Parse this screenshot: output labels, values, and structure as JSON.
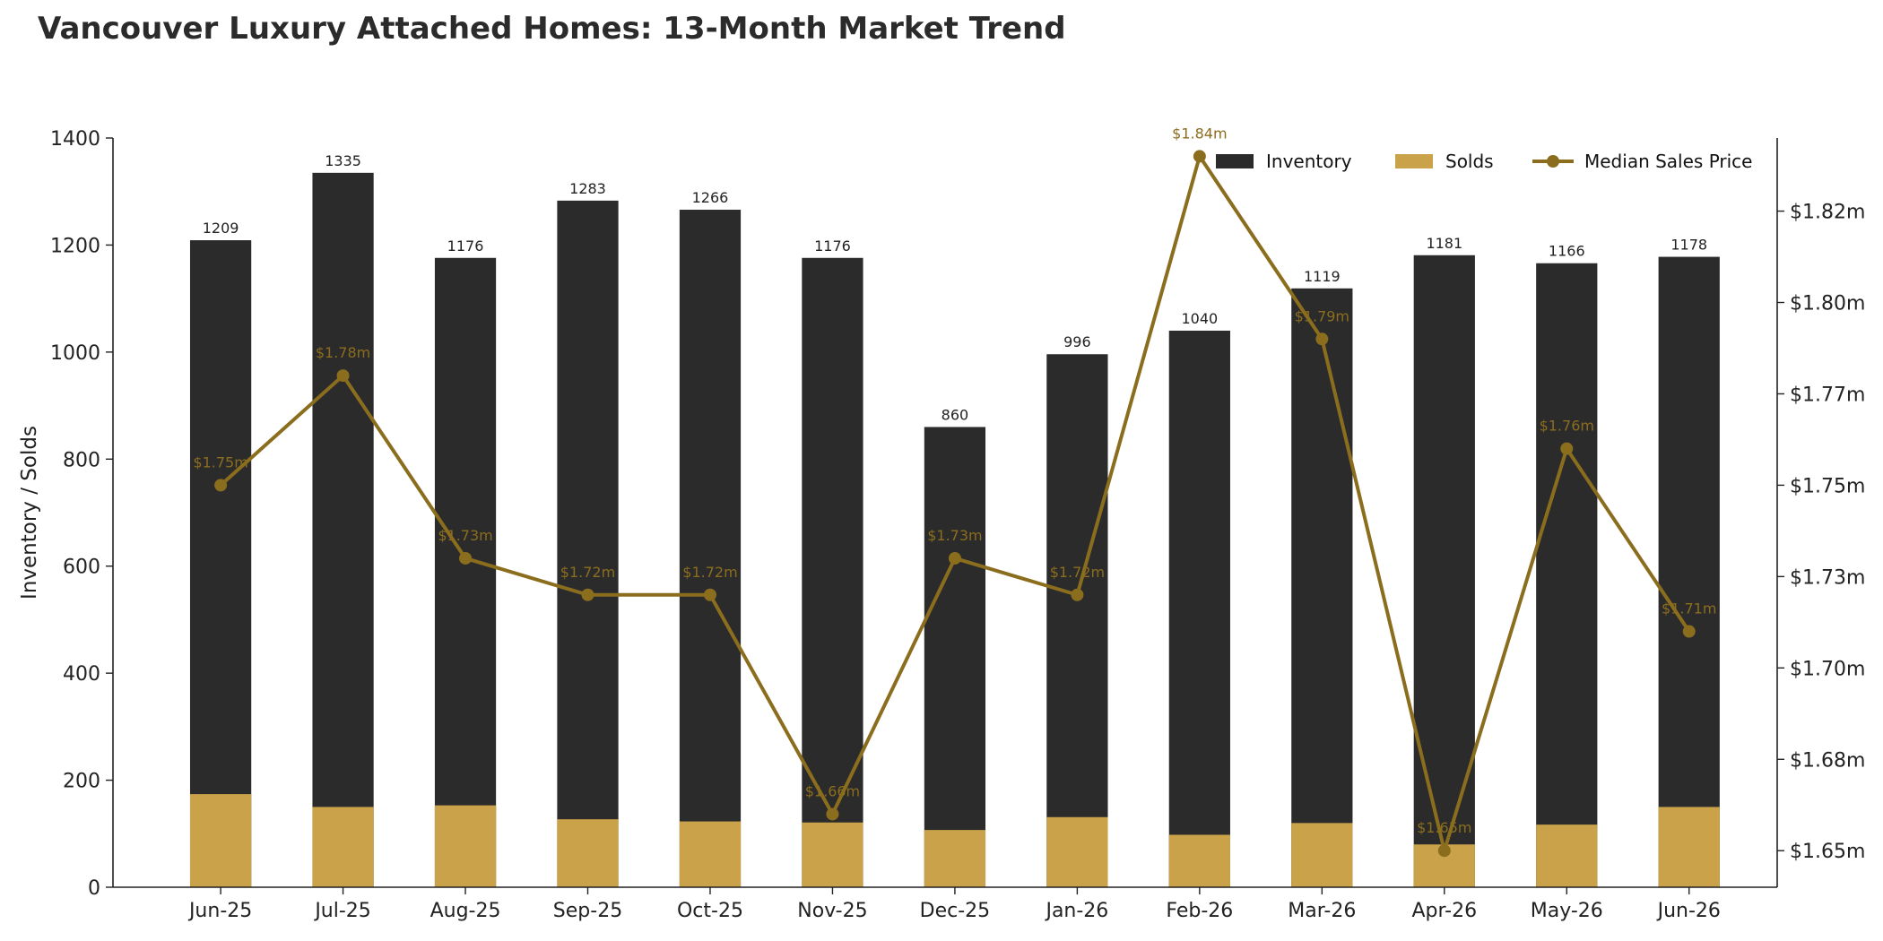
{
  "chart_data": {
    "title": "Vancouver Luxury Attached Homes: 13-Month Market Trend",
    "type": "bar",
    "categories": [
      "Jun-25",
      "Jul-25",
      "Aug-25",
      "Sep-25",
      "Oct-25",
      "Nov-25",
      "Dec-25",
      "Jan-26",
      "Feb-26",
      "Mar-26",
      "Apr-26",
      "May-26",
      "Jun-26"
    ],
    "series": [
      {
        "name": "Inventory",
        "type": "bar",
        "axis": "left",
        "color": "#2b2b2b",
        "values": [
          1209,
          1335,
          1176,
          1283,
          1266,
          1176,
          860,
          996,
          1040,
          1119,
          1181,
          1166,
          1178
        ]
      },
      {
        "name": "Solds",
        "type": "bar",
        "axis": "left",
        "color": "#c9a24a",
        "values": [
          174,
          150,
          153,
          127,
          123,
          121,
          107,
          131,
          98,
          120,
          80,
          117,
          150
        ]
      },
      {
        "name": "Median Sales Price",
        "type": "line",
        "axis": "right",
        "color": "#8b6d1e",
        "values": [
          1.75,
          1.78,
          1.73,
          1.72,
          1.72,
          1.66,
          1.73,
          1.72,
          1.84,
          1.79,
          1.65,
          1.76,
          1.71
        ],
        "labels": [
          "$1.75m",
          "$1.78m",
          "$1.73m",
          "$1.72m",
          "$1.72m",
          "$1.66m",
          "$1.73m",
          "$1.72m",
          "$1.84m",
          "$1.79m",
          "$1.65m",
          "$1.76m",
          "$1.71m"
        ]
      }
    ],
    "ylabel": "Inventory / Solds",
    "ylim": [
      0,
      1400
    ],
    "yticks": [
      0,
      200,
      400,
      600,
      800,
      1000,
      1200,
      1400
    ],
    "y2lim": [
      1.64,
      1.845
    ],
    "y2ticks": [
      {
        "value": 1.65,
        "label": "$1.65m"
      },
      {
        "value": 1.675,
        "label": "$1.68m"
      },
      {
        "value": 1.7,
        "label": "$1.70m"
      },
      {
        "value": 1.725,
        "label": "$1.73m"
      },
      {
        "value": 1.75,
        "label": "$1.75m"
      },
      {
        "value": 1.775,
        "label": "$1.77m"
      },
      {
        "value": 1.8,
        "label": "$1.80m"
      },
      {
        "value": 1.825,
        "label": "$1.82m"
      }
    ],
    "legend": {
      "position": "top-right",
      "entries": [
        "Inventory",
        "Solds",
        "Median Sales Price"
      ]
    },
    "grid": false
  }
}
